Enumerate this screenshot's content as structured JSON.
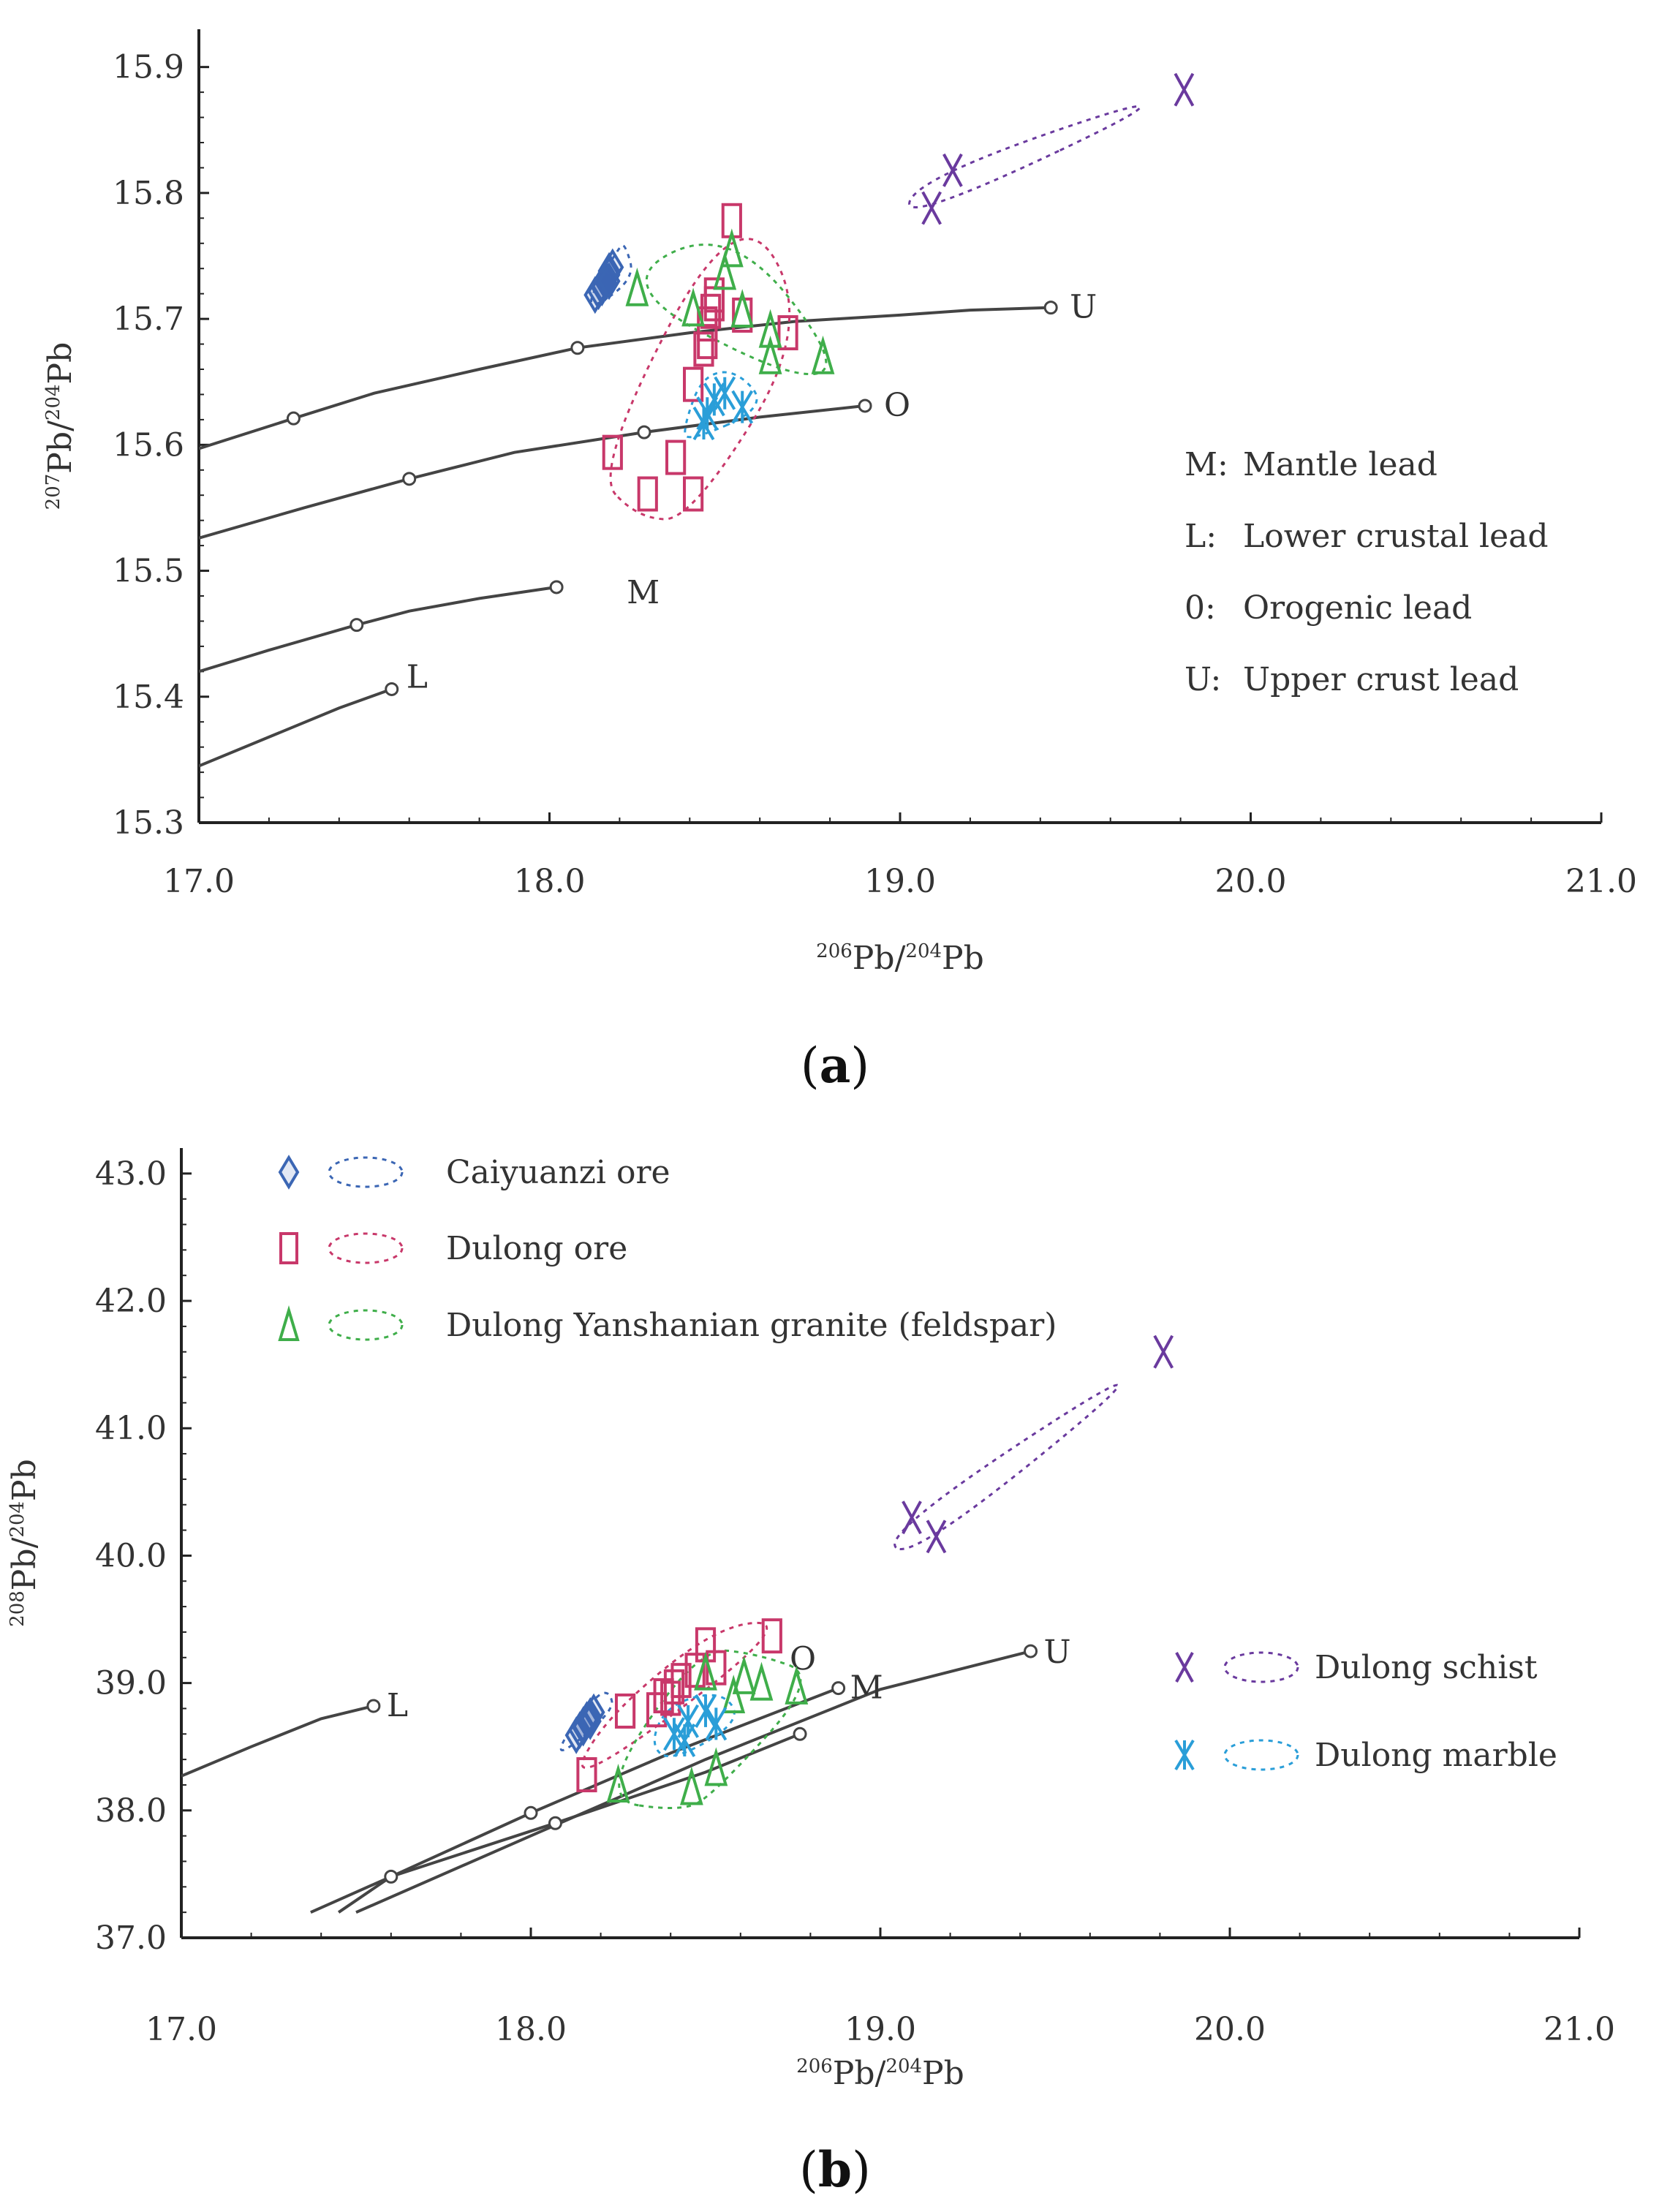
{
  "colors": {
    "caiyuanzi": "#3b66b4",
    "dulong_ore": "#c8386a",
    "granite": "#3fae4a",
    "schist": "#6a3a9e",
    "marble": "#2a9ed8",
    "curve": "#444444",
    "axis": "#222222"
  },
  "chart_data": [
    {
      "panel": "a",
      "panel_letter": "a",
      "type": "scatter",
      "xlabel_sup": "206",
      "xlabel_main": "Pb/",
      "xlabel_sup2": "204",
      "xlabel_tail": "Pb",
      "ylabel_sup": "207",
      "ylabel_main": "Pb/",
      "ylabel_sup2": "204",
      "ylabel_tail": "Pb",
      "xlim": [
        17.0,
        21.0
      ],
      "ylim": [
        15.3,
        15.93
      ],
      "xticks": [
        17.0,
        18.0,
        19.0,
        20.0,
        21.0
      ],
      "xtick_labels": [
        "17.0",
        "18.0",
        "19.0",
        "20.0",
        "21.0"
      ],
      "yticks": [
        15.3,
        15.4,
        15.5,
        15.6,
        15.7,
        15.8,
        15.9
      ],
      "ytick_labels": [
        "15.3",
        "15.4",
        "15.5",
        "15.6",
        "15.7",
        "15.8",
        "15.9"
      ],
      "curves": [
        {
          "id": "U",
          "label": "U",
          "points": [
            [
              17.0,
              15.597
            ],
            [
              17.27,
              15.621
            ],
            [
              17.5,
              15.641
            ],
            [
              17.8,
              15.66
            ],
            [
              18.08,
              15.677
            ],
            [
              18.4,
              15.689
            ],
            [
              18.7,
              15.698
            ],
            [
              19.0,
              15.703
            ],
            [
              19.2,
              15.707
            ],
            [
              19.43,
              15.709
            ]
          ],
          "markers": [
            17.27,
            18.08,
            19.43
          ]
        },
        {
          "id": "O",
          "label": "O",
          "points": [
            [
              17.0,
              15.526
            ],
            [
              17.3,
              15.55
            ],
            [
              17.6,
              15.573
            ],
            [
              17.9,
              15.594
            ],
            [
              18.27,
              15.61
            ],
            [
              18.6,
              15.622
            ],
            [
              18.9,
              15.631
            ]
          ],
          "markers": [
            17.6,
            18.27,
            18.9
          ]
        },
        {
          "id": "M",
          "label": "M",
          "points": [
            [
              17.0,
              15.42
            ],
            [
              17.2,
              15.437
            ],
            [
              17.45,
              15.457
            ],
            [
              17.6,
              15.468
            ],
            [
              17.8,
              15.478
            ],
            [
              18.02,
              15.487
            ]
          ],
          "markers": [
            17.45,
            18.02
          ]
        },
        {
          "id": "L",
          "label": "L",
          "points": [
            [
              17.0,
              15.345
            ],
            [
              17.2,
              15.368
            ],
            [
              17.4,
              15.391
            ],
            [
              17.55,
              15.406
            ]
          ],
          "markers": [
            17.55
          ]
        }
      ],
      "series": [
        {
          "name": "Caiyuanzi ore",
          "marker": "diamond",
          "color": "caiyuanzi",
          "points": [
            [
              18.13,
              15.719
            ],
            [
              18.14,
              15.722
            ],
            [
              18.15,
              15.725
            ],
            [
              18.16,
              15.729
            ],
            [
              18.16,
              15.732
            ],
            [
              18.17,
              15.735
            ],
            [
              18.17,
              15.738
            ],
            [
              18.18,
              15.741
            ],
            [
              18.15,
              15.727
            ],
            [
              18.17,
              15.73
            ]
          ]
        },
        {
          "name": "Dulong ore",
          "marker": "square",
          "color": "dulong_ore",
          "points": [
            [
              18.18,
              15.594
            ],
            [
              18.28,
              15.561
            ],
            [
              18.36,
              15.59
            ],
            [
              18.41,
              15.561
            ],
            [
              18.41,
              15.648
            ],
            [
              18.44,
              15.676
            ],
            [
              18.45,
              15.682
            ],
            [
              18.45,
              15.696
            ],
            [
              18.46,
              15.706
            ],
            [
              18.47,
              15.712
            ],
            [
              18.47,
              15.719
            ],
            [
              18.55,
              15.703
            ],
            [
              18.52,
              15.778
            ],
            [
              18.68,
              15.689
            ]
          ]
        },
        {
          "name": "Dulong Yanshanian granite (feldspar)",
          "marker": "triangle",
          "color": "granite",
          "points": [
            [
              18.25,
              15.724
            ],
            [
              18.41,
              15.708
            ],
            [
              18.5,
              15.737
            ],
            [
              18.52,
              15.755
            ],
            [
              18.63,
              15.691
            ],
            [
              18.63,
              15.67
            ],
            [
              18.78,
              15.67
            ],
            [
              18.55,
              15.707
            ]
          ]
        },
        {
          "name": "Dulong schist",
          "marker": "x",
          "color": "schist",
          "points": [
            [
              19.09,
              15.788
            ],
            [
              19.15,
              15.818
            ],
            [
              19.81,
              15.882
            ]
          ]
        },
        {
          "name": "Dulong marble",
          "marker": "asterisk",
          "color": "marble",
          "points": [
            [
              18.44,
              15.617
            ],
            [
              18.47,
              15.636
            ],
            [
              18.5,
              15.641
            ],
            [
              18.55,
              15.63
            ],
            [
              18.45,
              15.625
            ]
          ]
        }
      ],
      "legend_title_items": [
        {
          "code": "M:",
          "text": "Mantle lead"
        },
        {
          "code": "L:",
          "text": "Lower crustal lead"
        },
        {
          "code": "0:",
          "text": "Orogenic lead"
        },
        {
          "code": "U:",
          "text": "Upper crust lead"
        }
      ]
    },
    {
      "panel": "b",
      "panel_letter": "b",
      "type": "scatter",
      "xlabel_sup": "206",
      "xlabel_main": "Pb/",
      "xlabel_sup2": "204",
      "xlabel_tail": "Pb",
      "ylabel_sup": "208",
      "ylabel_main": "Pb/",
      "ylabel_sup2": "204",
      "ylabel_tail": "Pb",
      "xlim": [
        17.0,
        21.0
      ],
      "ylim": [
        37.0,
        43.2
      ],
      "xticks": [
        17.0,
        18.0,
        19.0,
        20.0,
        21.0
      ],
      "xtick_labels": [
        "17.0",
        "18.0",
        "19.0",
        "20.0",
        "21.0"
      ],
      "yticks": [
        37.0,
        38.0,
        39.0,
        40.0,
        41.0,
        42.0,
        43.0
      ],
      "ytick_labels": [
        "37.0",
        "38.0",
        "39.0",
        "40.0",
        "41.0",
        "42.0",
        "43.0"
      ],
      "curves": [
        {
          "id": "L",
          "label": "L",
          "points": [
            [
              17.0,
              38.27
            ],
            [
              17.2,
              38.5
            ],
            [
              17.4,
              38.72
            ],
            [
              17.55,
              38.82
            ]
          ],
          "markers": [
            17.55
          ]
        },
        {
          "id": "M",
          "label": "M",
          "points": [
            [
              17.37,
              37.2
            ],
            [
              17.6,
              37.48
            ],
            [
              18.0,
              37.98
            ],
            [
              18.4,
              38.45
            ],
            [
              18.88,
              38.96
            ]
          ],
          "markers": [
            18.0,
            18.88
          ]
        },
        {
          "id": "O",
          "label": "O",
          "points": [
            [
              17.45,
              37.2
            ],
            [
              17.6,
              37.48
            ],
            [
              18.07,
              37.9
            ],
            [
              18.5,
              38.3
            ],
            [
              18.77,
              38.6
            ]
          ],
          "markers": [
            17.6,
            18.07,
            18.77
          ]
        },
        {
          "id": "U",
          "label": "U",
          "points": [
            [
              17.5,
              37.2
            ],
            [
              18.0,
              37.8
            ],
            [
              18.5,
              38.4
            ],
            [
              19.0,
              38.95
            ],
            [
              19.43,
              39.25
            ]
          ],
          "markers": [
            19.43
          ]
        }
      ],
      "series": [
        {
          "name": "Caiyuanzi ore",
          "marker": "diamond",
          "color": "caiyuanzi",
          "points": [
            [
              18.13,
              38.59
            ],
            [
              18.14,
              38.63
            ],
            [
              18.15,
              38.67
            ],
            [
              18.16,
              38.71
            ],
            [
              18.17,
              38.74
            ],
            [
              18.18,
              38.77
            ],
            [
              18.15,
              38.65
            ],
            [
              18.17,
              38.7
            ]
          ]
        },
        {
          "name": "Dulong ore",
          "marker": "square",
          "color": "dulong_ore",
          "points": [
            [
              18.16,
              38.28
            ],
            [
              18.27,
              38.78
            ],
            [
              18.36,
              38.79
            ],
            [
              18.38,
              38.9
            ],
            [
              18.41,
              38.97
            ],
            [
              18.43,
              39.02
            ],
            [
              18.47,
              39.1
            ],
            [
              18.5,
              39.3
            ],
            [
              18.53,
              39.12
            ],
            [
              18.69,
              39.37
            ],
            [
              18.4,
              38.88
            ]
          ]
        },
        {
          "name": "Dulong Yanshanian granite (feldspar)",
          "marker": "triangle",
          "color": "granite",
          "points": [
            [
              18.25,
              38.2
            ],
            [
              18.46,
              38.18
            ],
            [
              18.53,
              38.33
            ],
            [
              18.5,
              39.08
            ],
            [
              18.58,
              38.9
            ],
            [
              18.61,
              39.05
            ],
            [
              18.66,
              39.0
            ],
            [
              18.76,
              38.97
            ]
          ]
        },
        {
          "name": "Dulong schist",
          "marker": "x",
          "color": "schist",
          "points": [
            [
              19.09,
              40.3
            ],
            [
              19.16,
              40.15
            ],
            [
              19.81,
              41.6
            ]
          ]
        },
        {
          "name": "Dulong marble",
          "marker": "asterisk",
          "color": "marble",
          "points": [
            [
              18.41,
              38.6
            ],
            [
              18.45,
              38.7
            ],
            [
              18.5,
              38.78
            ],
            [
              18.44,
              38.55
            ],
            [
              18.53,
              38.68
            ]
          ]
        }
      ],
      "legend": [
        {
          "key": "caiyuanzi",
          "marker": "diamond",
          "label": "Caiyuanzi ore"
        },
        {
          "key": "dulong_ore",
          "marker": "square",
          "label": "Dulong ore"
        },
        {
          "key": "granite",
          "marker": "triangle",
          "label": "Dulong Yanshanian granite (feldspar)"
        },
        {
          "key": "schist",
          "marker": "x",
          "label": "Dulong schist"
        },
        {
          "key": "marble",
          "marker": "asterisk",
          "label": "Dulong marble"
        }
      ]
    }
  ]
}
